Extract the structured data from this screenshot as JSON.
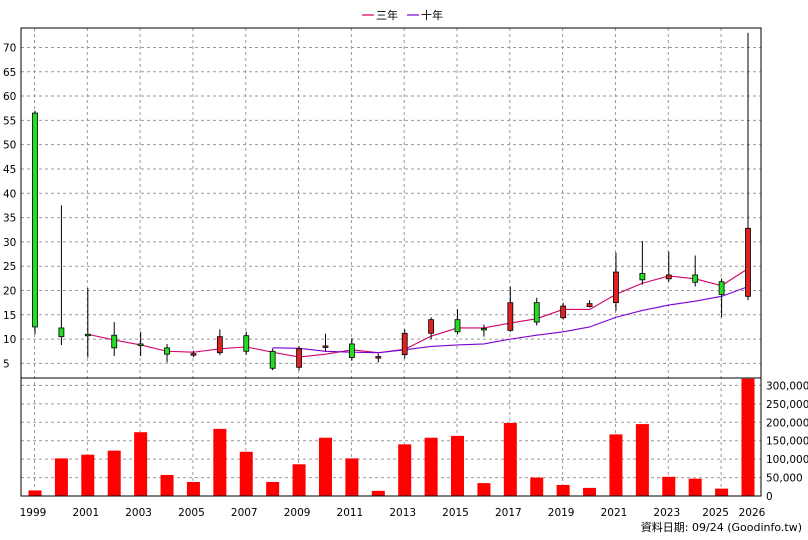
{
  "legend": [
    {
      "label": "三年",
      "color": "#d4006a"
    },
    {
      "label": "十年",
      "color": "#7b00d4"
    }
  ],
  "source_note": "資料日期: 09/24  (Goodinfo.tw)",
  "chart_data": [
    {
      "type": "candlestick",
      "up_color": "#22dd22",
      "down_color": "#dd2222",
      "y_ticks": [
        5,
        10,
        15,
        20,
        25,
        30,
        35,
        40,
        45,
        50,
        55,
        60,
        65,
        70
      ],
      "x_tick_labels": [
        "1999",
        "2001",
        "2003",
        "2005",
        "2007",
        "2009",
        "2011",
        "2013",
        "2015",
        "2017",
        "2019",
        "2021",
        "2023",
        "2025",
        "2026"
      ],
      "ylim": [
        2,
        74
      ],
      "grid": true,
      "legend_position": "top-center",
      "candles": [
        {
          "year": 1999,
          "open": 12.5,
          "high": 57,
          "low": 11,
          "close": 56.5
        },
        {
          "year": 2000,
          "open": 10.5,
          "high": 37.5,
          "low": 8.8,
          "close": 12.3
        },
        {
          "year": 2001,
          "open": 11,
          "high": 20.5,
          "low": 6.2,
          "close": 11
        },
        {
          "year": 2002,
          "open": 8.2,
          "high": 13.5,
          "low": 6.5,
          "close": 10.8
        },
        {
          "year": 2003,
          "open": 9,
          "high": 11.5,
          "low": 6.5,
          "close": 9
        },
        {
          "year": 2004,
          "open": 6.9,
          "high": 9,
          "low": 5.2,
          "close": 8.2
        },
        {
          "year": 2005,
          "open": 7,
          "high": 7.6,
          "low": 6.3,
          "close": 6.8
        },
        {
          "year": 2006,
          "open": 10.5,
          "high": 12,
          "low": 6.7,
          "close": 7.2
        },
        {
          "year": 2007,
          "open": 7.5,
          "high": 11.5,
          "low": 6.8,
          "close": 10.7
        },
        {
          "year": 2008,
          "open": 4,
          "high": 8.1,
          "low": 3.6,
          "close": 7.5
        },
        {
          "year": 2009,
          "open": 8,
          "high": 8.5,
          "low": 3.6,
          "close": 4.2
        },
        {
          "year": 2010,
          "open": 8.6,
          "high": 11.1,
          "low": 7.5,
          "close": 8.4
        },
        {
          "year": 2011,
          "open": 6.2,
          "high": 10.2,
          "low": 5.6,
          "close": 9
        },
        {
          "year": 2012,
          "open": 6.4,
          "high": 7,
          "low": 5.2,
          "close": 6.3
        },
        {
          "year": 2013,
          "open": 11.2,
          "high": 12,
          "low": 6,
          "close": 6.8
        },
        {
          "year": 2014,
          "open": 14,
          "high": 14.5,
          "low": 10,
          "close": 11.2
        },
        {
          "year": 2015,
          "open": 11.5,
          "high": 16.2,
          "low": 11,
          "close": 14
        },
        {
          "year": 2016,
          "open": 12.2,
          "high": 13,
          "low": 10.5,
          "close": 12.2
        },
        {
          "year": 2017,
          "open": 17.5,
          "high": 20.8,
          "low": 11.5,
          "close": 11.8
        },
        {
          "year": 2018,
          "open": 13.5,
          "high": 18.5,
          "low": 12.8,
          "close": 17.5
        },
        {
          "year": 2019,
          "open": 16.8,
          "high": 17.5,
          "low": 14,
          "close": 14.4
        },
        {
          "year": 2020,
          "open": 17.3,
          "high": 18,
          "low": 16.5,
          "close": 16.7
        },
        {
          "year": 2021,
          "open": 23.8,
          "high": 27.8,
          "low": 15.8,
          "close": 17.5
        },
        {
          "year": 2022,
          "open": 22.2,
          "high": 30.2,
          "low": 21.2,
          "close": 23.5
        },
        {
          "year": 2023,
          "open": 23.2,
          "high": 28,
          "low": 21.8,
          "close": 22.4
        },
        {
          "year": 2024,
          "open": 21.7,
          "high": 27.2,
          "low": 20.8,
          "close": 23.2
        },
        {
          "year": 2025,
          "open": 19.2,
          "high": 22.5,
          "low": 14.5,
          "close": 21.8
        },
        {
          "year": 2026,
          "open": 32.8,
          "high": 73,
          "low": 18,
          "close": 18.8
        }
      ],
      "lines": [
        {
          "name": "三年",
          "color": "#d4006a",
          "points": [
            [
              2001,
              11
            ],
            [
              2002,
              9.8
            ],
            [
              2003,
              8.8
            ],
            [
              2004,
              7.5
            ],
            [
              2005,
              7.3
            ],
            [
              2006,
              8
            ],
            [
              2007,
              8.4
            ],
            [
              2008,
              7.3
            ],
            [
              2009,
              6.3
            ],
            [
              2010,
              6.9
            ],
            [
              2011,
              7.8
            ],
            [
              2012,
              7.2
            ],
            [
              2013,
              7.9
            ],
            [
              2014,
              10.6
            ],
            [
              2015,
              12.3
            ],
            [
              2016,
              12.3
            ],
            [
              2017,
              13.3
            ],
            [
              2018,
              14.2
            ],
            [
              2019,
              16.1
            ],
            [
              2020,
              16.1
            ],
            [
              2021,
              19.2
            ],
            [
              2022,
              21.5
            ],
            [
              2023,
              23
            ],
            [
              2024,
              22.4
            ],
            [
              2025,
              21
            ],
            [
              2026,
              24.5
            ]
          ]
        },
        {
          "name": "十年",
          "color": "#7b00d4",
          "points": [
            [
              2008,
              8.2
            ],
            [
              2009,
              8.1
            ],
            [
              2010,
              7.5
            ],
            [
              2011,
              7.3
            ],
            [
              2012,
              7.2
            ],
            [
              2013,
              7.8
            ],
            [
              2014,
              8.5
            ],
            [
              2015,
              8.8
            ],
            [
              2016,
              9
            ],
            [
              2017,
              10
            ],
            [
              2018,
              10.8
            ],
            [
              2019,
              11.5
            ],
            [
              2020,
              12.5
            ],
            [
              2021,
              14.5
            ],
            [
              2022,
              15.9
            ],
            [
              2023,
              17
            ],
            [
              2024,
              17.8
            ],
            [
              2025,
              18.8
            ],
            [
              2026,
              20.8
            ]
          ]
        }
      ]
    },
    {
      "type": "bar",
      "color": "#ff0000",
      "y_ticks": [
        0,
        50000,
        100000,
        150000,
        200000,
        250000,
        300000
      ],
      "y_tick_labels": [
        "0",
        "50,000",
        "100,000",
        "150,000",
        "200,000",
        "250,000",
        "300,000"
      ],
      "ylim": [
        0,
        320000
      ],
      "grid": true,
      "categories": [
        1999,
        2000,
        2001,
        2002,
        2003,
        2004,
        2005,
        2006,
        2007,
        2008,
        2009,
        2010,
        2011,
        2012,
        2013,
        2014,
        2015,
        2016,
        2017,
        2018,
        2019,
        2020,
        2021,
        2022,
        2023,
        2024,
        2025,
        2026
      ],
      "values": [
        15000,
        102000,
        112000,
        123000,
        173000,
        57000,
        38000,
        182000,
        120000,
        38000,
        86000,
        158000,
        102000,
        14000,
        140000,
        158000,
        163000,
        35000,
        198000,
        50000,
        30000,
        22000,
        167000,
        195000,
        52000,
        47000,
        20000,
        318000
      ]
    }
  ]
}
